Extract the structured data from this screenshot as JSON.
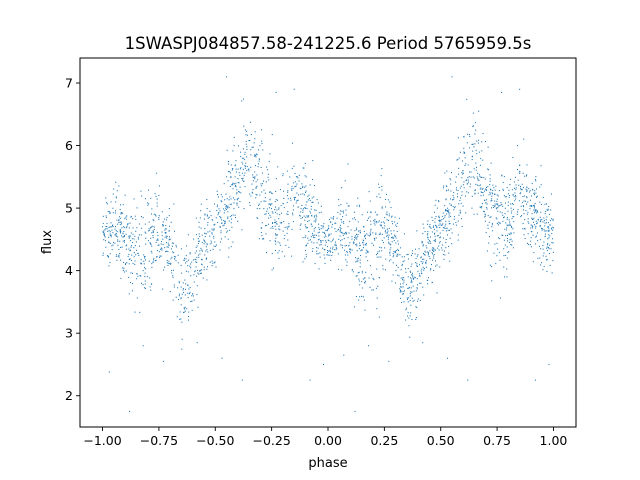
{
  "chart_data": {
    "type": "scatter",
    "title": "1SWASPJ084857.58-241225.6 Period 5765959.5s",
    "xlabel": "phase",
    "ylabel": "flux",
    "xlim": [
      -1.1,
      1.1
    ],
    "ylim": [
      1.5,
      7.4
    ],
    "xticks": [
      -1.0,
      -0.75,
      -0.5,
      -0.25,
      0.0,
      0.25,
      0.5,
      0.75,
      1.0
    ],
    "xtick_labels": [
      "−1.00",
      "−0.75",
      "−0.50",
      "−0.25",
      "0.00",
      "0.25",
      "0.50",
      "0.75",
      "1.00"
    ],
    "yticks": [
      2,
      3,
      4,
      5,
      6,
      7
    ],
    "ytick_labels": [
      "2",
      "3",
      "4",
      "5",
      "6",
      "7"
    ],
    "grid": false,
    "marker_color": "#1f77b4",
    "x_range": [
      -1.0,
      1.0
    ],
    "profile": [
      {
        "phase": -1.0,
        "flux": 4.5
      },
      {
        "phase": -0.95,
        "flux": 4.7
      },
      {
        "phase": -0.9,
        "flux": 4.5
      },
      {
        "phase": -0.85,
        "flux": 4.3
      },
      {
        "phase": -0.8,
        "flux": 4.4
      },
      {
        "phase": -0.75,
        "flux": 4.7
      },
      {
        "phase": -0.7,
        "flux": 4.4
      },
      {
        "phase": -0.65,
        "flux": 3.6
      },
      {
        "phase": -0.6,
        "flux": 3.9
      },
      {
        "phase": -0.55,
        "flux": 4.4
      },
      {
        "phase": -0.5,
        "flux": 4.7
      },
      {
        "phase": -0.45,
        "flux": 5.0
      },
      {
        "phase": -0.4,
        "flux": 5.4
      },
      {
        "phase": -0.35,
        "flux": 5.9
      },
      {
        "phase": -0.3,
        "flux": 5.2
      },
      {
        "phase": -0.25,
        "flux": 4.8
      },
      {
        "phase": -0.2,
        "flux": 4.7
      },
      {
        "phase": -0.15,
        "flux": 5.3
      },
      {
        "phase": -0.1,
        "flux": 4.9
      },
      {
        "phase": -0.05,
        "flux": 4.7
      },
      {
        "phase": 0.0,
        "flux": 4.5
      }
    ],
    "spread": [
      {
        "phase": -1.0,
        "sigma": 0.2
      },
      {
        "phase": -0.9,
        "sigma": 0.35
      },
      {
        "phase": -0.8,
        "sigma": 0.45
      },
      {
        "phase": -0.7,
        "sigma": 0.3
      },
      {
        "phase": -0.6,
        "sigma": 0.35
      },
      {
        "phase": -0.5,
        "sigma": 0.3
      },
      {
        "phase": -0.4,
        "sigma": 0.35
      },
      {
        "phase": -0.3,
        "sigma": 0.45
      },
      {
        "phase": -0.2,
        "sigma": 0.35
      },
      {
        "phase": -0.1,
        "sigma": 0.35
      },
      {
        "phase": 0.0,
        "sigma": 0.25
      }
    ],
    "n_points": 2600,
    "outliers": [
      {
        "x": -0.97,
        "y": 2.38
      },
      {
        "x": -0.88,
        "y": 1.75
      },
      {
        "x": -0.82,
        "y": 2.8
      },
      {
        "x": -0.73,
        "y": 2.55
      },
      {
        "x": -0.58,
        "y": 2.85
      },
      {
        "x": -0.47,
        "y": 2.6
      },
      {
        "x": -0.38,
        "y": 2.25
      },
      {
        "x": -0.08,
        "y": 2.25
      },
      {
        "x": -0.02,
        "y": 2.5
      },
      {
        "x": 0.07,
        "y": 2.65
      },
      {
        "x": 0.12,
        "y": 1.75
      },
      {
        "x": 0.18,
        "y": 2.8
      },
      {
        "x": 0.27,
        "y": 2.55
      },
      {
        "x": 0.42,
        "y": 2.85
      },
      {
        "x": 0.53,
        "y": 2.6
      },
      {
        "x": 0.62,
        "y": 2.25
      },
      {
        "x": 0.92,
        "y": 2.25
      },
      {
        "x": 0.98,
        "y": 2.5
      },
      {
        "x": -0.45,
        "y": 7.1
      },
      {
        "x": -0.23,
        "y": 6.85
      },
      {
        "x": 0.55,
        "y": 7.1
      },
      {
        "x": 0.77,
        "y": 6.85
      },
      {
        "x": -0.15,
        "y": 6.9
      },
      {
        "x": 0.85,
        "y": 6.9
      }
    ]
  }
}
